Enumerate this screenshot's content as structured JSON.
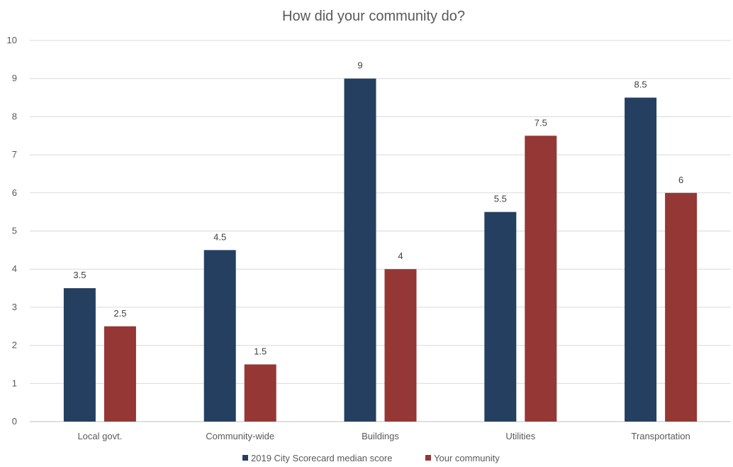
{
  "chart_data": {
    "type": "bar",
    "title": "How did your community do?",
    "categories": [
      "Local govt.",
      "Community-wide",
      "Buildings",
      "Utilities",
      "Transportation"
    ],
    "series": [
      {
        "name": "2019 City Scorecard median score",
        "color": "#243f60",
        "values": [
          3.5,
          4.5,
          9,
          5.5,
          8.5
        ],
        "labels": [
          "3.5",
          "4.5",
          "9",
          "5.5",
          "8.5"
        ]
      },
      {
        "name": "Your community",
        "color": "#953735",
        "values": [
          2.5,
          1.5,
          4,
          7.5,
          6
        ],
        "labels": [
          "2.5",
          "1.5",
          "4",
          "7.5",
          "6"
        ]
      }
    ],
    "yticks": [
      "0",
      "1",
      "2",
      "3",
      "4",
      "5",
      "6",
      "7",
      "8",
      "9",
      "10"
    ],
    "ylim": [
      0,
      10
    ],
    "xlabel": "",
    "ylabel": "",
    "grid": true,
    "legend_position": "bottom"
  }
}
